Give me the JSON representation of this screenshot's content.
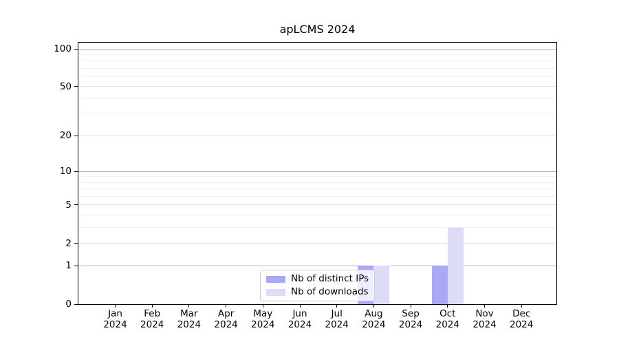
{
  "chart_data": {
    "type": "bar",
    "title": "apLCMS 2024",
    "categories": [
      "Jan",
      "Feb",
      "Mar",
      "Apr",
      "May",
      "Jun",
      "Jul",
      "Aug",
      "Sep",
      "Oct",
      "Nov",
      "Dec"
    ],
    "year_label": "2024",
    "series": [
      {
        "name": "Nb of distinct IPs",
        "color": "#a9a9f7",
        "values": [
          0,
          0,
          0,
          0,
          0,
          0,
          0,
          1,
          0,
          1,
          0,
          0
        ]
      },
      {
        "name": "Nb of downloads",
        "color": "#dcdcf8",
        "values": [
          0,
          0,
          0,
          0,
          0,
          0,
          0,
          1,
          0,
          3,
          0,
          0
        ]
      }
    ],
    "yscale": "log1p",
    "ylim": [
      0,
      100
    ],
    "yticks": [
      0,
      1,
      2,
      5,
      10,
      20,
      50,
      100
    ],
    "minor_yticks": [
      3,
      4,
      6,
      7,
      8,
      9,
      30,
      40,
      60,
      70,
      80,
      90
    ],
    "decade_ticks": [
      1,
      10,
      100
    ],
    "grid": "horizontal",
    "legend_position": "lower center",
    "colors": {
      "grid_decade": "#b0b0b0",
      "grid_major": "#e0e0e0",
      "grid_minor": "#f0f0f0",
      "axis": "#000000",
      "background": "#ffffff"
    }
  }
}
